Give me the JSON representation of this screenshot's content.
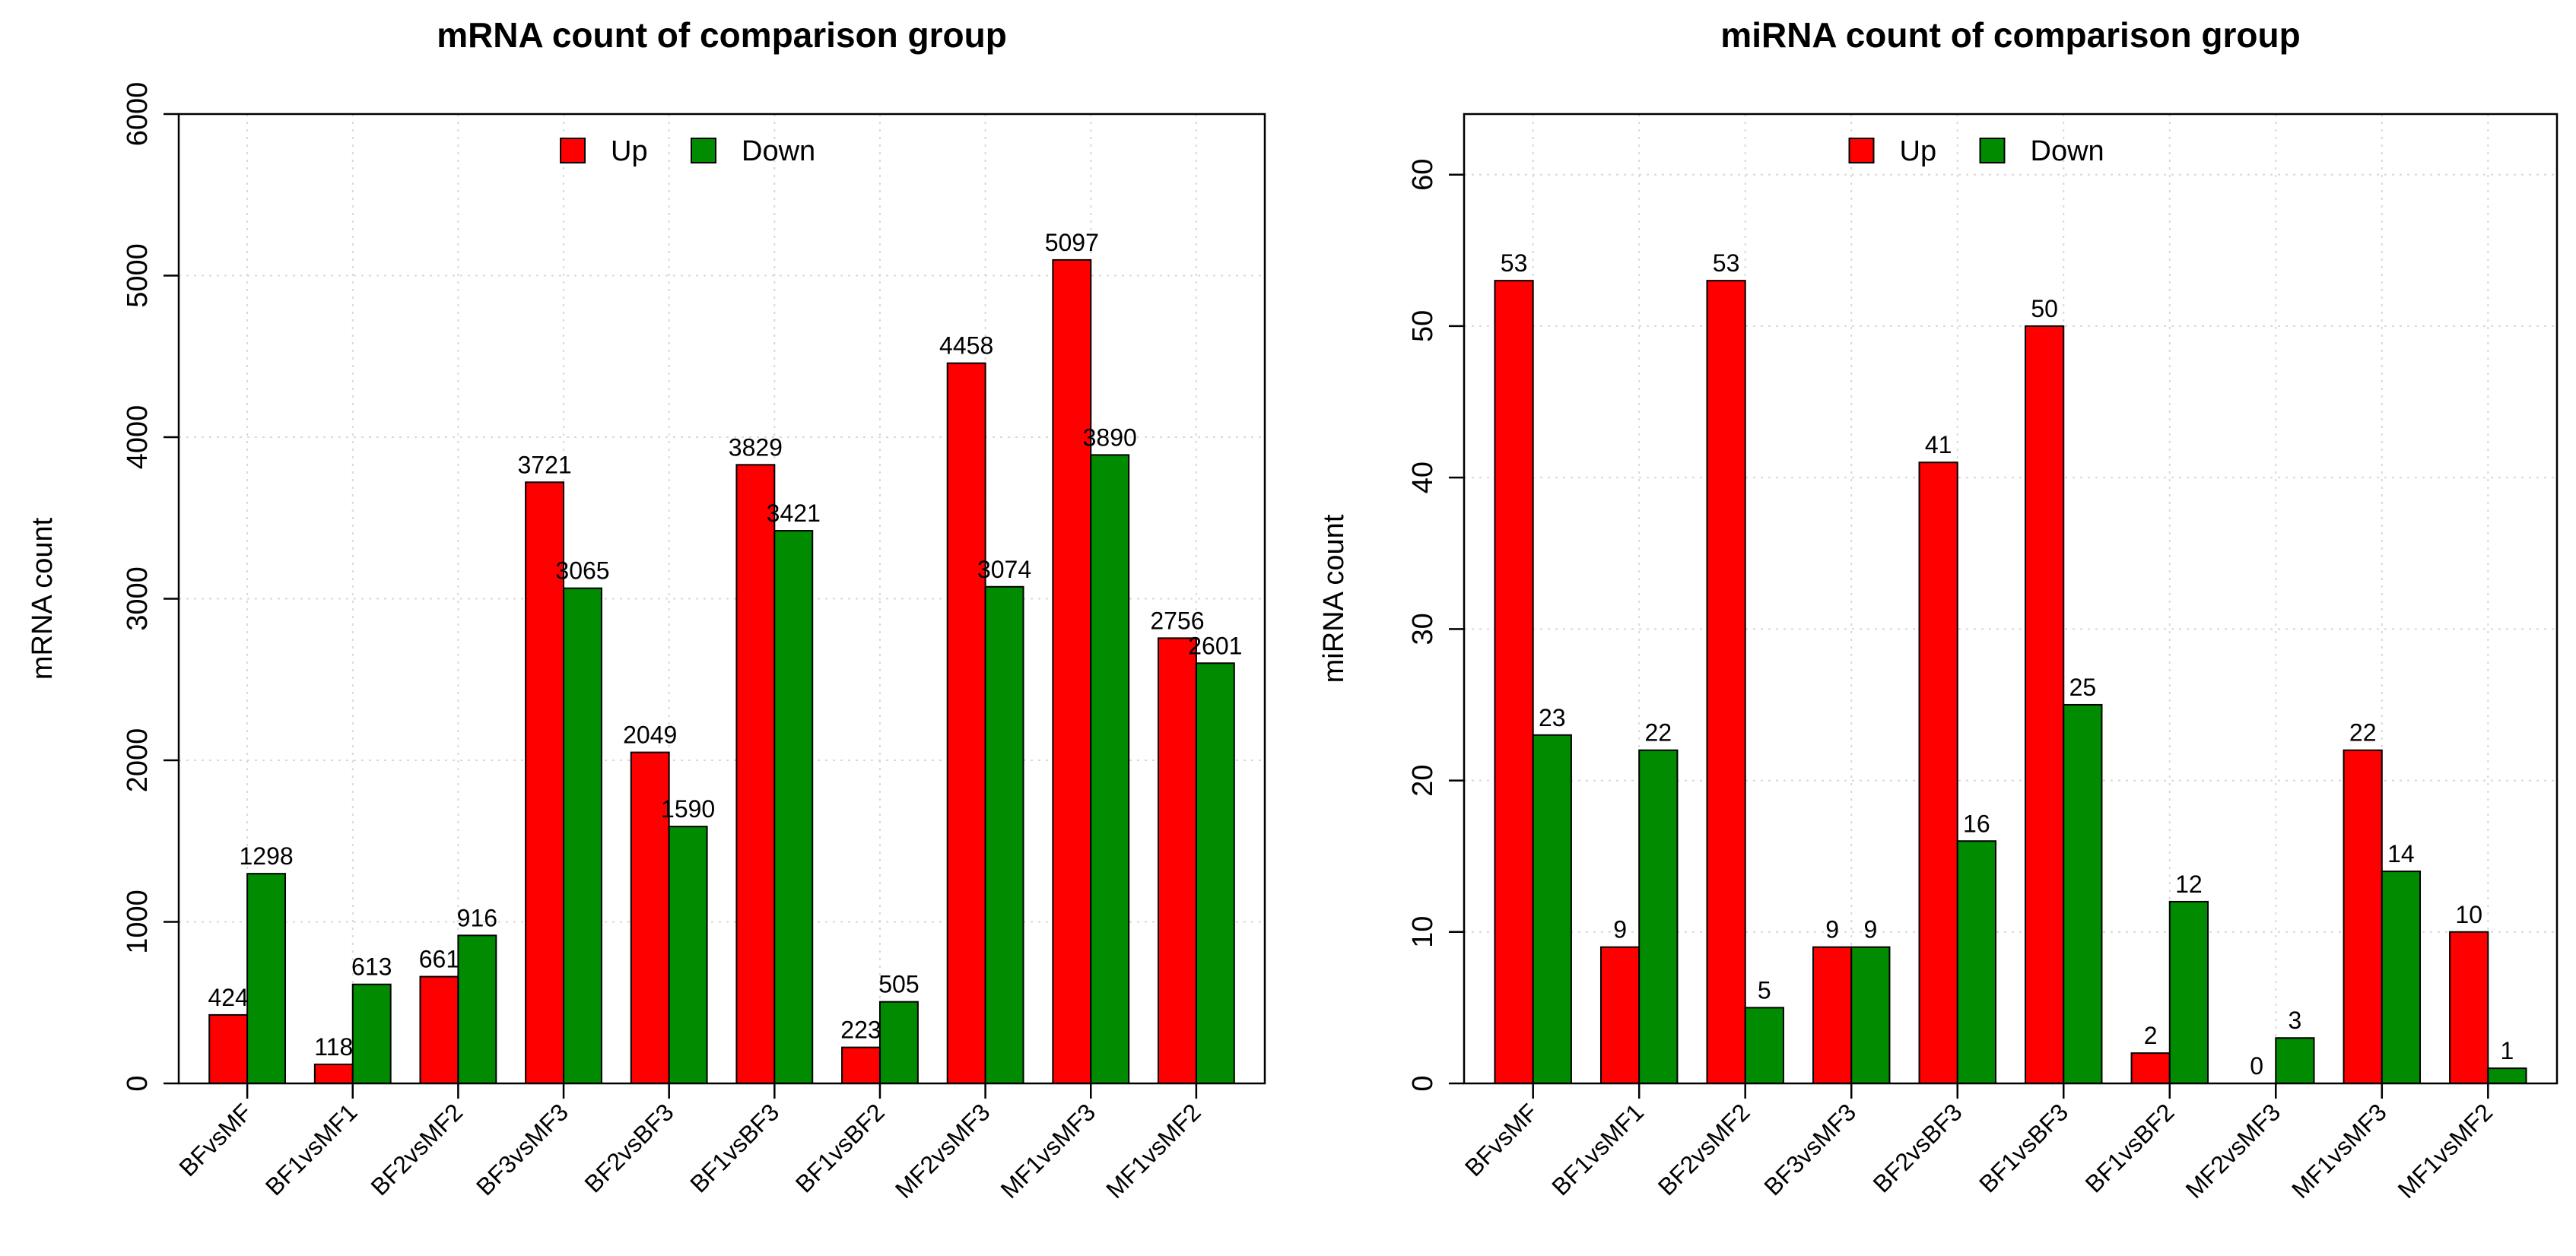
{
  "colors": {
    "up": "#FF0000",
    "down": "#008B00",
    "grid": "#D8D8D8",
    "axis": "#000000"
  },
  "chart_data": [
    {
      "type": "bar",
      "title": "mRNA count of comparison group",
      "xlabel": "",
      "ylabel": "mRNA count",
      "ylim": [
        0,
        6000
      ],
      "yticks": [
        0,
        1000,
        2000,
        3000,
        4000,
        5000,
        6000
      ],
      "legend": "top-center",
      "grid": true,
      "categories": [
        "BFvsMF",
        "BF1vsMF1",
        "BF2vsMF2",
        "BF3vsMF3",
        "BF2vsBF3",
        "BF1vsBF3",
        "BF1vsBF2",
        "MF2vsMF3",
        "MF1vsMF3",
        "MF1vsMF2"
      ],
      "series": [
        {
          "name": "Up",
          "values": [
            424,
            118,
            661,
            3721,
            2049,
            3829,
            223,
            4458,
            5097,
            2756
          ]
        },
        {
          "name": "Down",
          "values": [
            1298,
            613,
            916,
            3065,
            1590,
            3421,
            505,
            3074,
            3890,
            2601
          ]
        }
      ]
    },
    {
      "type": "bar",
      "title": "miRNA count of comparison group",
      "xlabel": "",
      "ylabel": "miRNA count",
      "ylim": [
        0,
        64
      ],
      "yticks": [
        0,
        10,
        20,
        30,
        40,
        50,
        60
      ],
      "legend": "top-center",
      "grid": true,
      "categories": [
        "BFvsMF",
        "BF1vsMF1",
        "BF2vsMF2",
        "BF3vsMF3",
        "BF2vsBF3",
        "BF1vsBF3",
        "BF1vsBF2",
        "MF2vsMF3",
        "MF1vsMF3",
        "MF1vsMF2"
      ],
      "series": [
        {
          "name": "Up",
          "values": [
            53,
            9,
            53,
            9,
            41,
            50,
            2,
            0,
            22,
            10
          ]
        },
        {
          "name": "Down",
          "values": [
            23,
            22,
            5,
            9,
            16,
            25,
            12,
            3,
            14,
            1
          ]
        }
      ]
    }
  ]
}
